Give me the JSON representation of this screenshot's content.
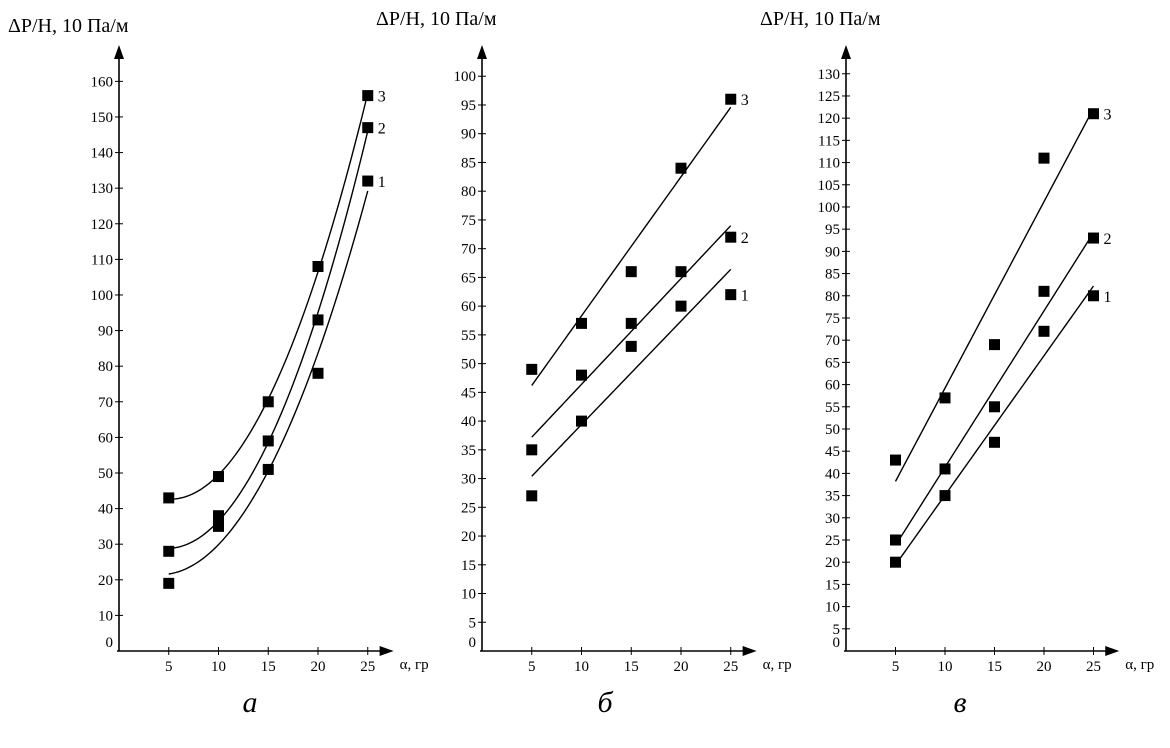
{
  "colors": {
    "ink": "#000000",
    "background": "#ffffff"
  },
  "chart_data": [
    {
      "type": "scatter",
      "panel_label": "а",
      "ylabel": "ΔP/H, 10 Па/м",
      "xlabel": "α, гр",
      "origin_label": "0",
      "x_ticks": [
        5,
        10,
        15,
        20,
        25
      ],
      "y_ticks": [
        10,
        20,
        30,
        40,
        50,
        60,
        70,
        80,
        90,
        100,
        110,
        120,
        130,
        140,
        150,
        160
      ],
      "xlim": [
        0,
        28
      ],
      "ylim": [
        0,
        166
      ],
      "fit": "quadratic",
      "series": [
        {
          "name": "1",
          "x": [
            5,
            10,
            15,
            20,
            25
          ],
          "y": [
            19,
            35,
            51,
            78,
            132
          ]
        },
        {
          "name": "2",
          "x": [
            5,
            10,
            15,
            20,
            25
          ],
          "y": [
            28,
            38,
            59,
            93,
            147
          ]
        },
        {
          "name": "3",
          "x": [
            5,
            10,
            15,
            20,
            25
          ],
          "y": [
            43,
            49,
            70,
            108,
            156
          ]
        }
      ]
    },
    {
      "type": "scatter",
      "panel_label": "б",
      "ylabel": "ΔP/H, 10 Па/м",
      "xlabel": "α, гр",
      "origin_label": "0",
      "x_ticks": [
        5,
        10,
        15,
        20,
        25
      ],
      "y_ticks": [
        5,
        10,
        15,
        20,
        25,
        30,
        35,
        40,
        45,
        50,
        55,
        60,
        65,
        70,
        75,
        80,
        85,
        90,
        95,
        100
      ],
      "xlim": [
        0,
        28
      ],
      "ylim": [
        0,
        103
      ],
      "fit": "linear",
      "series": [
        {
          "name": "1",
          "x": [
            5,
            10,
            15,
            20,
            25
          ],
          "y": [
            27,
            40,
            53,
            60,
            62
          ]
        },
        {
          "name": "2",
          "x": [
            5,
            10,
            15,
            20,
            25
          ],
          "y": [
            35,
            48,
            57,
            66,
            72
          ]
        },
        {
          "name": "3",
          "x": [
            5,
            10,
            15,
            20,
            25
          ],
          "y": [
            49,
            57,
            66,
            84,
            96
          ]
        }
      ]
    },
    {
      "type": "scatter",
      "panel_label": "в",
      "ylabel": "ΔP/H, 10 Па/м",
      "xlabel": "α, гр",
      "origin_label": "0",
      "x_ticks": [
        5,
        10,
        15,
        20,
        25
      ],
      "y_ticks": [
        5,
        10,
        15,
        20,
        25,
        30,
        35,
        40,
        45,
        50,
        55,
        60,
        65,
        70,
        75,
        80,
        85,
        90,
        95,
        100,
        105,
        110,
        115,
        120,
        125,
        130
      ],
      "xlim": [
        0,
        28
      ],
      "ylim": [
        0,
        134
      ],
      "fit": "linear",
      "series": [
        {
          "name": "1",
          "x": [
            5,
            10,
            15,
            20,
            25
          ],
          "y": [
            20,
            35,
            47,
            72,
            80
          ]
        },
        {
          "name": "2",
          "x": [
            5,
            10,
            15,
            20,
            25
          ],
          "y": [
            25,
            41,
            55,
            81,
            93
          ]
        },
        {
          "name": "3",
          "x": [
            5,
            10,
            15,
            20,
            25
          ],
          "y": [
            43,
            57,
            69,
            111,
            121
          ]
        }
      ]
    }
  ]
}
